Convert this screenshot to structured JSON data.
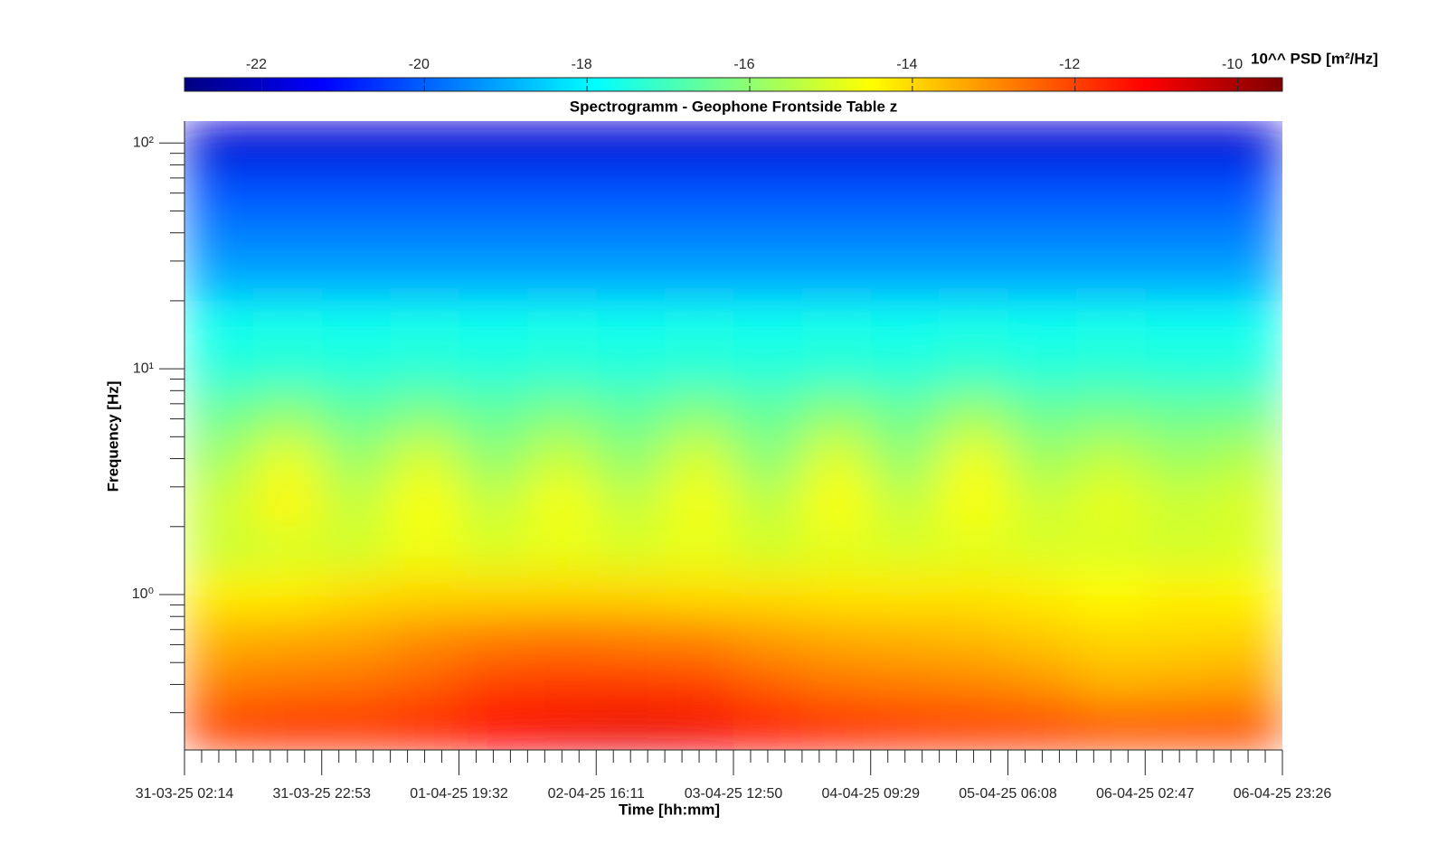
{
  "chart_data": {
    "type": "heatmap",
    "title": "Spectrogramm - Geophone Frontside Table z",
    "xlabel": "Time [hh:mm]",
    "ylabel": "Frequency [Hz]",
    "colormap": "jet",
    "log_y": true,
    "xticks": [
      "31-03-25 02:14",
      "31-03-25 22:53",
      "01-04-25 19:32",
      "02-04-25 16:11",
      "03-04-25 12:50",
      "04-04-25 09:29",
      "05-04-25 06:08",
      "06-04-25 02:47",
      "06-04-25 23:26"
    ],
    "ylim": [
      0.205,
      125
    ],
    "yticks": [
      {
        "value": 1,
        "label": "10⁰"
      },
      {
        "value": 10,
        "label": "10¹"
      },
      {
        "value": 100,
        "label": "10²"
      }
    ],
    "yminorticks": [
      0.3,
      0.4,
      0.5,
      0.6,
      0.7,
      0.8,
      0.9,
      2,
      3,
      4,
      5,
      6,
      7,
      8,
      9,
      20,
      30,
      40,
      50,
      60,
      70,
      80,
      90
    ],
    "colorbar": {
      "label": "10^^ PSD [m²/Hz]",
      "lim": [
        -22.95,
        -9.45
      ],
      "ticks": [
        -22,
        -20,
        -18,
        -16,
        -14,
        -12,
        -10
      ]
    },
    "z": [
      [
        -12.0,
        -11.8,
        -11.8,
        -11.6,
        -11.2,
        -11.0,
        -10.9,
        -11.0,
        -11.3,
        -11.6,
        -11.8,
        -11.9,
        -12.0,
        -12.2,
        -12.2,
        -12.2
      ],
      [
        -12.8,
        -12.7,
        -12.6,
        -12.4,
        -12.0,
        -11.9,
        -11.9,
        -12.0,
        -12.4,
        -12.7,
        -12.8,
        -12.9,
        -13.1,
        -13.5,
        -13.4,
        -13.3
      ],
      [
        -13.5,
        -13.4,
        -13.3,
        -13.0,
        -12.8,
        -12.7,
        -12.8,
        -12.9,
        -13.2,
        -13.4,
        -13.5,
        -13.6,
        -13.8,
        -14.0,
        -14.0,
        -13.9
      ],
      [
        -14.3,
        -14.3,
        -14.1,
        -14.0,
        -14.0,
        -14.0,
        -14.0,
        -14.1,
        -14.1,
        -14.2,
        -14.2,
        -14.2,
        -14.3,
        -14.5,
        -14.3,
        -14.4
      ],
      [
        -15.2,
        -15.0,
        -15.1,
        -14.7,
        -15.0,
        -14.8,
        -15.0,
        -14.8,
        -15.1,
        -14.9,
        -15.0,
        -14.9,
        -15.0,
        -15.0,
        -15.1,
        -15.0
      ],
      [
        -15.2,
        -14.4,
        -15.3,
        -14.5,
        -15.3,
        -14.6,
        -15.3,
        -14.6,
        -15.4,
        -14.5,
        -15.3,
        -14.5,
        -15.2,
        -14.8,
        -15.2,
        -15.0
      ],
      [
        -15.8,
        -14.8,
        -15.9,
        -15.0,
        -16.0,
        -15.2,
        -16.0,
        -15.0,
        -16.1,
        -14.9,
        -16.0,
        -14.7,
        -15.8,
        -15.3,
        -15.8,
        -15.5
      ],
      [
        -16.5,
        -16.0,
        -16.6,
        -16.2,
        -16.6,
        -16.2,
        -16.6,
        -16.1,
        -16.6,
        -16.0,
        -16.5,
        -15.8,
        -16.5,
        -16.3,
        -16.5,
        -16.4
      ],
      [
        -17.4,
        -17.3,
        -17.4,
        -17.3,
        -17.4,
        -17.3,
        -17.4,
        -17.3,
        -17.4,
        -17.3,
        -17.4,
        -17.2,
        -17.4,
        -17.3,
        -17.4,
        -17.4
      ],
      [
        -17.7,
        -17.6,
        -17.7,
        -17.6,
        -17.7,
        -17.6,
        -17.7,
        -17.6,
        -17.7,
        -17.6,
        -17.7,
        -17.6,
        -17.7,
        -17.6,
        -17.7,
        -17.7
      ],
      [
        -19.0,
        -19.0,
        -19.0,
        -19.0,
        -19.0,
        -19.0,
        -19.0,
        -19.0,
        -19.0,
        -19.0,
        -19.0,
        -19.0,
        -19.0,
        -19.0,
        -19.0,
        -19.0
      ],
      [
        -19.6,
        -19.6,
        -19.6,
        -19.6,
        -19.6,
        -19.6,
        -19.6,
        -19.6,
        -19.6,
        -19.6,
        -19.6,
        -19.6,
        -19.6,
        -19.6,
        -19.6,
        -19.6
      ],
      [
        -20.2,
        -20.2,
        -20.2,
        -20.2,
        -20.2,
        -20.2,
        -20.2,
        -20.2,
        -20.2,
        -20.2,
        -20.2,
        -20.2,
        -20.2,
        -20.2,
        -20.2,
        -20.2
      ],
      [
        -21.8,
        -21.8,
        -21.8,
        -21.8,
        -21.8,
        -21.8,
        -21.8,
        -21.8,
        -21.8,
        -21.8,
        -21.8,
        -21.8,
        -21.8,
        -21.8,
        -21.8,
        -21.8
      ]
    ]
  }
}
